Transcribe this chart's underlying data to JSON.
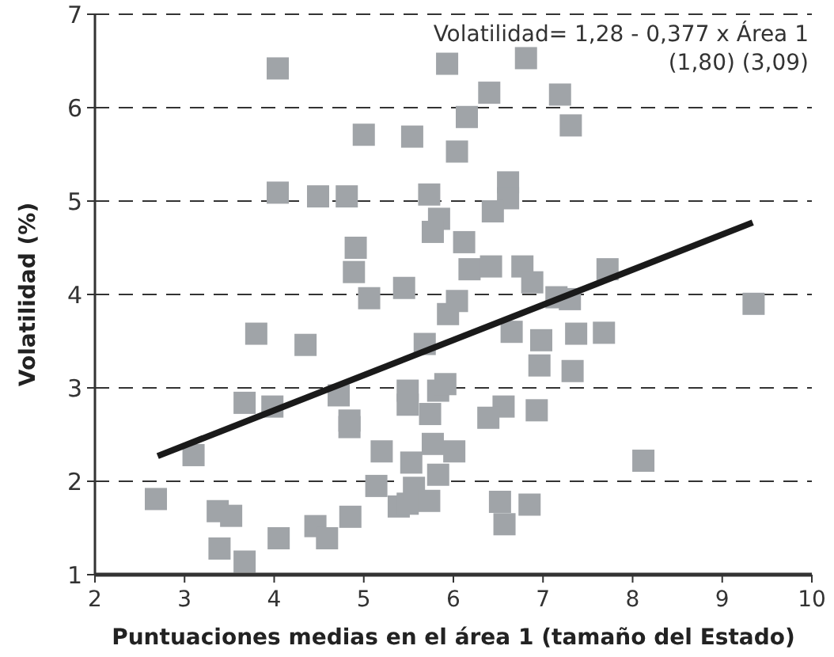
{
  "chart_data": {
    "type": "scatter",
    "xlabel": "Puntuaciones medias en el área 1 (tamaño del Estado)",
    "ylabel": "Volatilidad (%)",
    "xlim": [
      2,
      10
    ],
    "xticks": [
      2,
      3,
      4,
      5,
      6,
      7,
      8,
      9,
      10
    ],
    "ylim": [
      1,
      7
    ],
    "yticks": [
      1,
      2,
      3,
      4,
      5,
      6,
      7
    ],
    "grid": "y",
    "annotations": [
      "Volatilidad= 1,28 - 0,377 x Área 1",
      "(1,80) (3,09)"
    ],
    "series": [
      {
        "marker": "square",
        "color": "#a0a4a8",
        "x": [
          2.68,
          3.1,
          3.8,
          4.35,
          3.67,
          3.98,
          3.37,
          3.52,
          3.39,
          3.67,
          4.05,
          4.46,
          4.59,
          4.85,
          4.72,
          4.84,
          4.84,
          5.2,
          5.14,
          5.39,
          5.49,
          5.56,
          5.73,
          5.49,
          5.49,
          5.74,
          5.53,
          5.77,
          5.83,
          5.83,
          5.91,
          5.68,
          5.94,
          5.06,
          5.45,
          4.04,
          4.04,
          4.49,
          4.81,
          5.0,
          5.54,
          5.93,
          6.04,
          5.73,
          5.84,
          5.77,
          4.91,
          4.89,
          6.81,
          6.4,
          7.19,
          6.15,
          7.31,
          6.61,
          6.61,
          6.44,
          6.12,
          6.18,
          6.42,
          6.77,
          6.88,
          7.72,
          7.15,
          7.3,
          6.04,
          9.35,
          6.65,
          6.98,
          7.37,
          7.68,
          6.96,
          7.33,
          6.56,
          6.39,
          6.93,
          6.01,
          8.12,
          6.52,
          6.57,
          6.85
        ],
        "values": [
          1.81,
          2.28,
          3.58,
          3.46,
          2.84,
          2.8,
          1.68,
          1.63,
          1.28,
          1.14,
          1.39,
          1.52,
          1.39,
          1.62,
          2.92,
          2.65,
          2.58,
          2.32,
          1.95,
          1.73,
          1.76,
          1.93,
          1.79,
          2.97,
          2.82,
          2.72,
          2.2,
          2.4,
          2.07,
          2.97,
          3.04,
          3.47,
          3.79,
          3.96,
          4.07,
          6.42,
          5.09,
          5.05,
          5.05,
          5.71,
          5.69,
          6.47,
          5.53,
          5.07,
          4.81,
          4.67,
          4.5,
          4.24,
          6.53,
          6.16,
          6.14,
          5.9,
          5.81,
          5.2,
          5.03,
          4.89,
          4.56,
          4.27,
          4.3,
          4.3,
          4.13,
          4.27,
          3.97,
          3.95,
          3.93,
          3.9,
          3.6,
          3.51,
          3.58,
          3.59,
          3.24,
          3.18,
          2.8,
          2.68,
          2.76,
          2.32,
          2.22,
          1.78,
          1.54,
          1.75
        ]
      },
      {
        "type": "line",
        "marker": "none",
        "line_style": "solid",
        "color": "#1a1a1a",
        "x": [
          2.7,
          9.34
        ],
        "values": [
          2.27,
          4.77
        ]
      }
    ]
  }
}
